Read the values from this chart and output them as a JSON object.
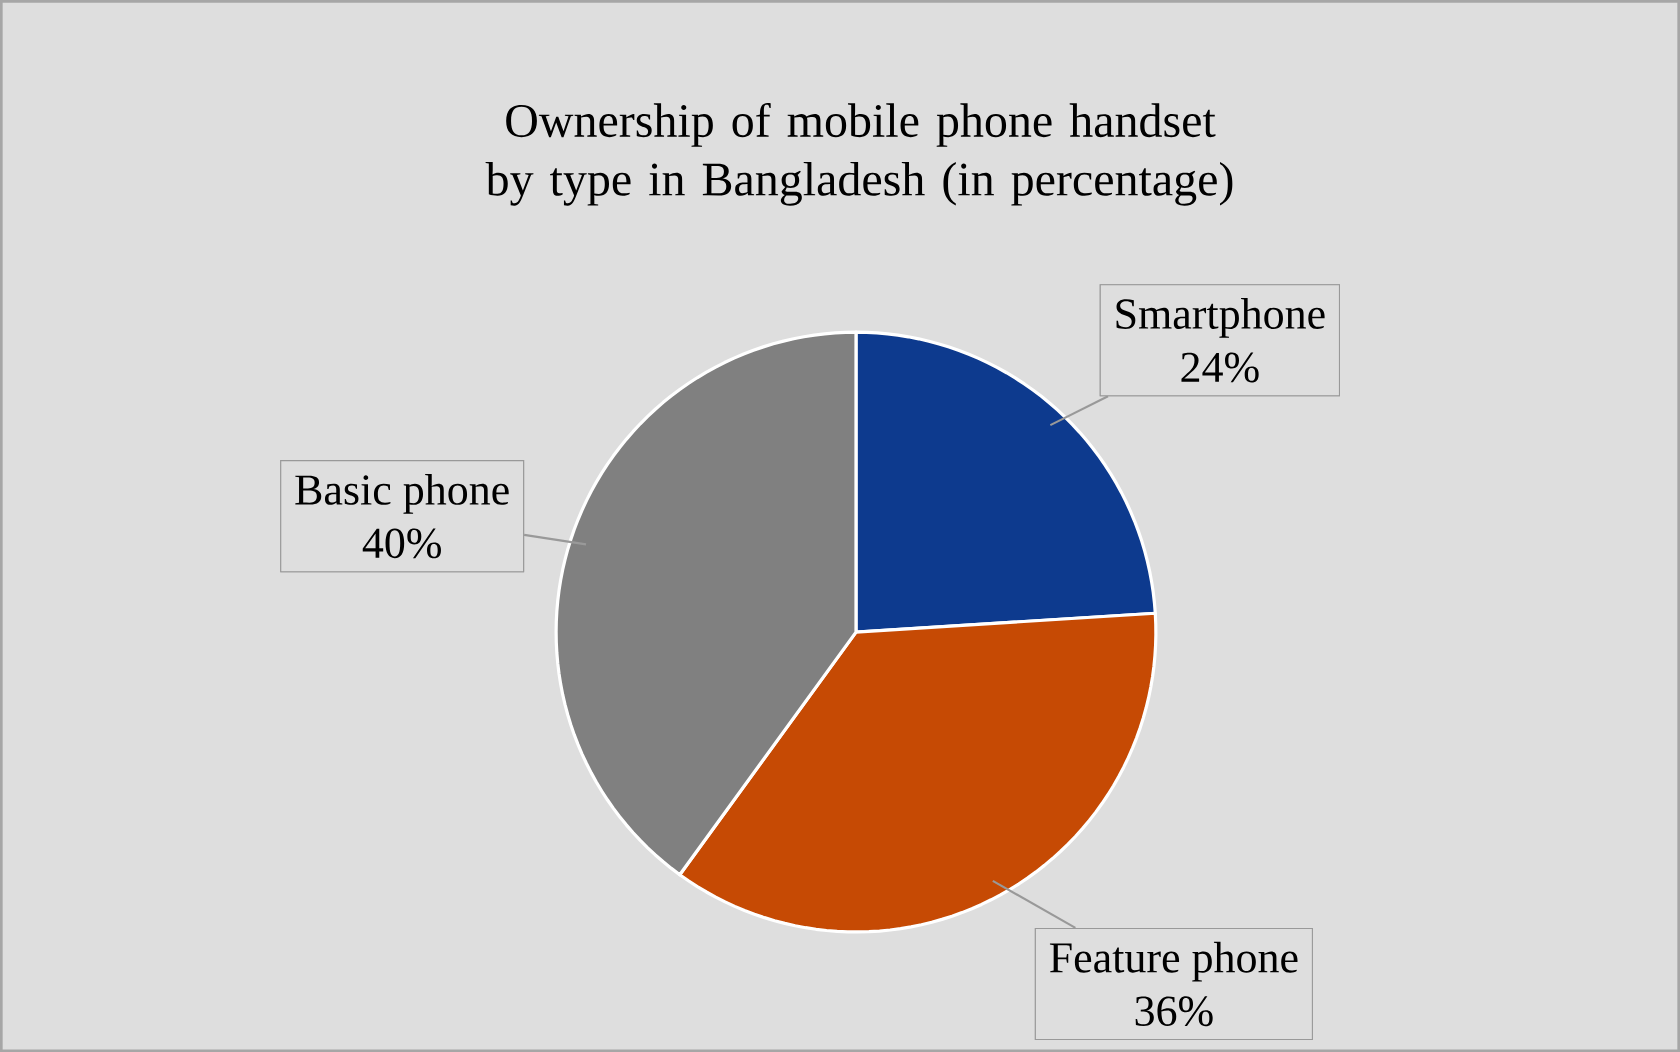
{
  "chart_data": {
    "type": "pie",
    "title": "Ownership of mobile phone handset by type in Bangladesh (in percentage)",
    "categories": [
      "Smartphone",
      "Feature phone",
      "Basic phone"
    ],
    "values": [
      24,
      36,
      40
    ],
    "value_labels": [
      "24%",
      "36%",
      "40%"
    ],
    "colors": [
      "#0d3a8e",
      "#c64a04",
      "#808080"
    ]
  }
}
